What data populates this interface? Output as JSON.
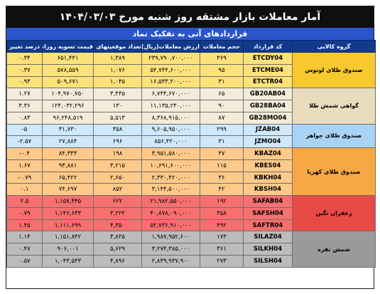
{
  "title": "آمار معاملات بازار مشتقه روز شنبه مورخ ۱۴۰۴/۰۳/۰۳",
  "subtitle": "قراردادهای آتی به تفکیک نماد",
  "columns": {
    "group": "گروه کالایی",
    "code": "کد قرارداد",
    "volume": "حجم معاملات",
    "value": "ارزش معاملات(ریال)",
    "open_positions": "تعداد موقعیتهای باز",
    "settlement_price": "قیمت تسویه روزانه(ریال)",
    "change_pct": "درصد تغییر"
  },
  "groups": [
    {
      "name": "صندوق طلای لوتوس",
      "rows": [
        {
          "code": "ETCDY04",
          "volume": "۳۶۹",
          "value": "۲۳۹,۷۹۰,۷۰۰,۰۰۰",
          "open_positions": "۱,۳۸۹",
          "settlement_price": "۶۵۱,۴۴۱",
          "change_pct": "۰.۳۴"
        },
        {
          "code": "ETCME04",
          "volume": "۹۵",
          "value": "۵۴,۷۴۴,۶۰۰,۰۰۰",
          "open_positions": "۱,۰۷۶",
          "settlement_price": "۵۷۸,۵۵۹",
          "change_pct": "۰.۳۷"
        },
        {
          "code": "ETCTR04",
          "volume": "۳۱",
          "value": "۱۶,۵۳۳,۲۰۰,۰۰۰",
          "open_positions": "۱,۰۴۵",
          "settlement_price": "۵۰۹,۶۷۱",
          "change_pct": "۰.۹۳"
        }
      ]
    },
    {
      "name": "گواهی شمش طلا",
      "rows": [
        {
          "code": "GB20AB04",
          "volume": "۶۵",
          "value": "۶,۷۴۴,۶۷۰,۰۰۰",
          "open_positions": "۳,۴۴۵",
          "settlement_price": "۱۰۴,۹۷۰,۷۵۰",
          "change_pct": "۱.۲۷"
        },
        {
          "code": "GB28BA04",
          "volume": "۹۰",
          "value": "۱۱,۱۳۵,۲۳۰,۰۰۰",
          "open_positions": "۱۳۰",
          "settlement_price": "۱۲۴,۰۳۲,۲۹۶",
          "change_pct": "۳.۳۶"
        },
        {
          "code": "GB28MO04",
          "volume": "۸۷",
          "value": "۸,۳۶۸,۹۱۵,۰۰۰",
          "open_positions": "۵,۵۱۳",
          "settlement_price": "۹۶,۲۴۸,۵۱۹",
          "change_pct": "۰.۸۳"
        }
      ]
    },
    {
      "name": "صندوق طلای جواهر",
      "rows": [
        {
          "code": "JZAB04",
          "volume": "۲۹۹",
          "value": "۹,۶۰۵,۹۵۰,۰۰۰",
          "open_positions": "۳۵۸",
          "settlement_price": "۳۱,۷۳۰",
          "change_pct": "-۵"
        },
        {
          "code": "JZMO04",
          "volume": "۳۱",
          "value": "۸۵۶,۴۲۰,۰۰۰",
          "open_positions": "۶۹۶",
          "settlement_price": "۲۷,۸۸۴",
          "change_pct": "-۲.۵۷"
        }
      ]
    },
    {
      "name": "صندوق طلای کهربا",
      "rows": [
        {
          "code": "KBAZ04",
          "volume": "۴۷",
          "value": "۳,۹۵۱,۵۸۰,۰۰۰",
          "open_positions": "۱۹۸",
          "settlement_price": "۸۴,۳۳۳",
          "change_pct": "-۰.۴"
        },
        {
          "code": "KBES04",
          "volume": "۱۱۵",
          "value": "۱۰,۶۹۱,۶۰۰,۰۰۰",
          "open_positions": "۳,۲۱۵",
          "settlement_price": "۹۳,۸۸۱",
          "change_pct": "۱.۶۷"
        },
        {
          "code": "KBKH04",
          "volume": "۳۶",
          "value": "۲,۳۳۰,۴۲۰,۰۰۰",
          "open_positions": "۲,۶۵۰",
          "settlement_price": "۶۵,۴۲۲",
          "change_pct": "-۰.۷۹"
        },
        {
          "code": "KBSH04",
          "volume": "۴۲",
          "value": "۳,۱۴۴,۵۰۰,۰۰۰",
          "open_positions": "۸۵۲",
          "settlement_price": "۷۴,۶۹۷",
          "change_pct": "۰.۱"
        }
      ]
    },
    {
      "name": "زعفران نگین",
      "rows": [
        {
          "code": "SAFAB04",
          "volume": "۱۹۲",
          "value": "۲۱,۹۸۲,۵۵۰,۰۰۰",
          "open_positions": "۶۲۲",
          "settlement_price": "۱,۱۵۷,۴۴۵",
          "change_pct": "۲.۵"
        },
        {
          "code": "SAFSH04",
          "volume": "۳۵۸",
          "value": "۴۰,۸۷۸,۰۹۰,۰۰۰",
          "open_positions": "۳,۲۲۲",
          "settlement_price": "۱,۱۴۶,۶۳۳",
          "change_pct": "۰.۷۹"
        },
        {
          "code": "SAFTR04",
          "volume": "۴۹۲",
          "value": "۵۲,۷۳۶,۹۱۰,۰۰۰",
          "open_positions": "۴,۳۵۰",
          "settlement_price": "۱,۱۱۱,۶۹۹",
          "change_pct": "۱.۴۵"
        }
      ]
    },
    {
      "name": "شمش نقره",
      "rows": [
        {
          "code": "SILAZ04",
          "volume": "۱۷۳",
          "value": "۱,۹۸۷,۹۵۲,۶۰۰",
          "open_positions": "۳,۸۲۵",
          "settlement_price": "۱,۱۵۱,۸۴۲",
          "change_pct": "۱.۱۴"
        },
        {
          "code": "SILKH04",
          "volume": "۳۶۱",
          "value": "۳,۲۷۴,۳۸۵,۰۰۰",
          "open_positions": "۵,۶۲۹",
          "settlement_price": "۹۰۶,۰۰۱",
          "change_pct": "۰.۴۷"
        },
        {
          "code": "SILSH04",
          "volume": "۲۷۳",
          "value": "۲,۸۳۹,۹۳۷,۹۰۰",
          "open_positions": "۴,۸۹۶",
          "settlement_price": "۱,۰۴۳,۵۴۳",
          "change_pct": "۰.۵۷"
        }
      ]
    }
  ]
}
